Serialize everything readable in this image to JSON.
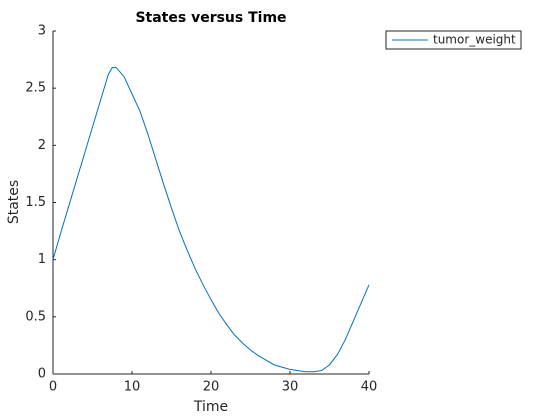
{
  "chart_data": {
    "type": "line",
    "title": "States versus Time",
    "x_label": "Time",
    "y_label": "States",
    "x": [
      0,
      1,
      2,
      3,
      4,
      5,
      6,
      7,
      7.5,
      8,
      9,
      10,
      11,
      12,
      13,
      14,
      15,
      16,
      17,
      18,
      19,
      20,
      21,
      22,
      23,
      24,
      25,
      26,
      27,
      28,
      29,
      30,
      31,
      32,
      33,
      34,
      35,
      36,
      37,
      38,
      39,
      40
    ],
    "series": [
      {
        "name": "tumor_weight",
        "color": "#0072bd",
        "values": [
          1.0,
          1.24,
          1.47,
          1.7,
          1.93,
          2.16,
          2.39,
          2.62,
          2.68,
          2.68,
          2.6,
          2.45,
          2.3,
          2.1,
          1.88,
          1.66,
          1.45,
          1.25,
          1.08,
          0.92,
          0.78,
          0.65,
          0.53,
          0.43,
          0.34,
          0.27,
          0.21,
          0.16,
          0.12,
          0.08,
          0.06,
          0.04,
          0.03,
          0.02,
          0.02,
          0.03,
          0.08,
          0.17,
          0.3,
          0.46,
          0.62,
          0.78
        ]
      }
    ],
    "xlim": [
      0,
      40
    ],
    "xticks": [
      0,
      10,
      20,
      30,
      40
    ],
    "ylim": [
      0,
      3
    ],
    "yticks": [
      0,
      0.5,
      1,
      1.5,
      2,
      2.5,
      3
    ],
    "grid": false,
    "legend_position": "outside-upper-right"
  }
}
